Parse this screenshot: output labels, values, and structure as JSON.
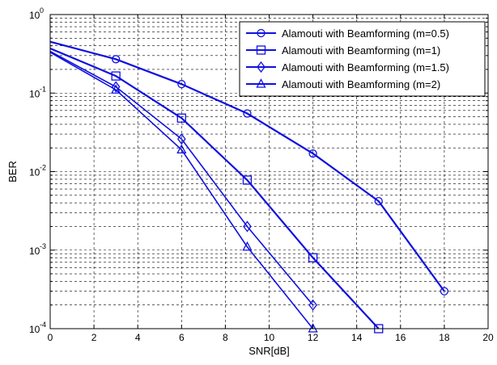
{
  "chart_data": {
    "type": "line",
    "title": "",
    "xlabel": "SNR[dB]",
    "ylabel": "BER",
    "xlim": [
      0,
      20
    ],
    "ylim": [
      0.0001,
      1
    ],
    "yscale": "log",
    "grid": true,
    "legend_position": "top-right",
    "x_ticks": [
      "0",
      "2",
      "4",
      "6",
      "8",
      "10",
      "12",
      "14",
      "16",
      "18",
      "20"
    ],
    "y_ticks": [
      {
        "base": "10",
        "exp": "-4"
      },
      {
        "base": "10",
        "exp": "-3"
      },
      {
        "base": "10",
        "exp": "-2"
      },
      {
        "base": "10",
        "exp": "-1"
      },
      {
        "base": "10",
        "exp": "0"
      }
    ],
    "series": [
      {
        "name": "Alamouti with Beamforming (m=0.5)",
        "marker": "circle",
        "color": "#1010e0",
        "x": [
          0,
          3,
          6,
          9,
          12,
          15,
          18
        ],
        "y": [
          0.45,
          0.27,
          0.13,
          0.055,
          0.017,
          0.0042,
          0.0003
        ]
      },
      {
        "name": "Alamouti with Beamforming (m=1)",
        "marker": "square",
        "color": "#1010e0",
        "x": [
          0,
          3,
          6,
          9,
          12,
          15
        ],
        "y": [
          0.37,
          0.165,
          0.048,
          0.0078,
          0.0008,
          0.0001
        ]
      },
      {
        "name": "Alamouti with Beamforming (m=1.5)",
        "marker": "diamond",
        "color": "#1010e0",
        "x": [
          0,
          3,
          6,
          9,
          12
        ],
        "y": [
          0.34,
          0.12,
          0.026,
          0.002,
          0.0002
        ]
      },
      {
        "name": "Alamouti with Beamforming (m=2)",
        "marker": "triangle",
        "color": "#1010e0",
        "x": [
          0,
          3,
          6,
          9,
          12
        ],
        "y": [
          0.33,
          0.11,
          0.019,
          0.0011,
          0.0001
        ]
      }
    ]
  }
}
